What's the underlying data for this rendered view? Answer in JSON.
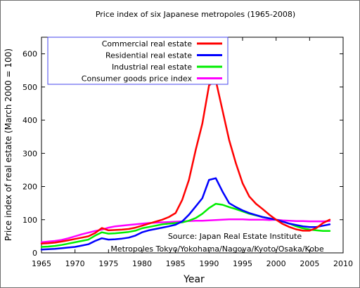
{
  "chart_data": {
    "type": "line",
    "title": "Price index of six Japanese metropoles (1965-2008)",
    "xlabel": "Year",
    "ylabel": "Price index of real estate (March 2000 = 100)",
    "xlim": [
      1965,
      2010
    ],
    "ylim": [
      0,
      650
    ],
    "xticks": [
      1965,
      1970,
      1975,
      1980,
      1985,
      1990,
      1995,
      2000,
      2005,
      2010
    ],
    "yticks": [
      0,
      100,
      200,
      300,
      400,
      500,
      600
    ],
    "grid": false,
    "legend_position": "top-left",
    "annotations": [
      "Source: Japan Real Estate Institute",
      "Metropoles Tokyo/Yokohama/Nagoya/Kyoto/Osaka/Kobe"
    ],
    "series": [
      {
        "name": "Commercial real estate",
        "color": "#ff0000",
        "x": [
          1965,
          1966,
          1967,
          1968,
          1969,
          1970,
          1971,
          1972,
          1973,
          1974,
          1975,
          1976,
          1977,
          1978,
          1979,
          1980,
          1981,
          1982,
          1983,
          1984,
          1985,
          1986,
          1987,
          1988,
          1989,
          1990,
          1991,
          1992,
          1993,
          1994,
          1995,
          1996,
          1997,
          1998,
          1999,
          2000,
          2001,
          2002,
          2003,
          2004,
          2005,
          2006,
          2007,
          2008
        ],
        "y": [
          28,
          29,
          31,
          34,
          38,
          42,
          46,
          50,
          60,
          75,
          68,
          69,
          70,
          72,
          76,
          82,
          88,
          94,
          100,
          108,
          120,
          160,
          220,
          310,
          390,
          505,
          520,
          430,
          340,
          270,
          210,
          170,
          148,
          132,
          115,
          100,
          87,
          78,
          71,
          67,
          67,
          75,
          90,
          100
        ]
      },
      {
        "name": "Residential real estate",
        "color": "#0000ff",
        "x": [
          1965,
          1966,
          1967,
          1968,
          1969,
          1970,
          1971,
          1972,
          1973,
          1974,
          1975,
          1976,
          1977,
          1978,
          1979,
          1980,
          1981,
          1982,
          1983,
          1984,
          1985,
          1986,
          1987,
          1988,
          1989,
          1990,
          1991,
          1992,
          1993,
          1994,
          1995,
          1996,
          1997,
          1998,
          1999,
          2000,
          2001,
          2002,
          2003,
          2004,
          2005,
          2006,
          2007,
          2008
        ],
        "y": [
          10,
          11,
          12,
          14,
          16,
          18,
          22,
          26,
          36,
          44,
          40,
          41,
          43,
          46,
          52,
          62,
          68,
          72,
          76,
          80,
          85,
          95,
          115,
          140,
          165,
          220,
          225,
          185,
          150,
          138,
          128,
          120,
          114,
          108,
          104,
          100,
          94,
          88,
          84,
          80,
          78,
          78,
          82,
          86
        ]
      },
      {
        "name": "Industrial real estate",
        "color": "#00ee00",
        "x": [
          1965,
          1966,
          1967,
          1968,
          1969,
          1970,
          1971,
          1972,
          1973,
          1974,
          1975,
          1976,
          1977,
          1978,
          1979,
          1980,
          1981,
          1982,
          1983,
          1984,
          1985,
          1986,
          1987,
          1988,
          1989,
          1990,
          1991,
          1992,
          1993,
          1994,
          1995,
          1996,
          1997,
          1998,
          1999,
          2000,
          2001,
          2002,
          2003,
          2004,
          2005,
          2006,
          2007,
          2008
        ],
        "y": [
          18,
          19,
          21,
          24,
          28,
          32,
          36,
          40,
          52,
          62,
          58,
          59,
          61,
          63,
          67,
          74,
          78,
          82,
          86,
          88,
          90,
          92,
          97,
          105,
          118,
          135,
          148,
          145,
          138,
          132,
          125,
          118,
          113,
          108,
          104,
          100,
          94,
          88,
          80,
          74,
          70,
          68,
          66,
          66
        ]
      },
      {
        "name": "Consumer goods price index",
        "color": "#ff00ff",
        "x": [
          1965,
          1966,
          1967,
          1968,
          1969,
          1970,
          1971,
          1972,
          1973,
          1974,
          1975,
          1976,
          1977,
          1978,
          1979,
          1980,
          1981,
          1982,
          1983,
          1984,
          1985,
          1986,
          1987,
          1988,
          1989,
          1990,
          1991,
          1992,
          1993,
          1994,
          1995,
          1996,
          1997,
          1998,
          1999,
          2000,
          2001,
          2002,
          2003,
          2004,
          2005,
          2006,
          2007,
          2008
        ],
        "y": [
          32,
          34,
          36,
          39,
          44,
          50,
          56,
          61,
          66,
          70,
          76,
          80,
          82,
          84,
          86,
          88,
          90,
          91,
          92,
          93,
          94,
          95,
          96,
          97,
          97,
          98,
          99,
          100,
          101,
          101,
          101,
          100,
          100,
          100,
          99,
          100,
          98,
          97,
          96,
          96,
          95,
          95,
          95,
          96
        ]
      }
    ]
  }
}
